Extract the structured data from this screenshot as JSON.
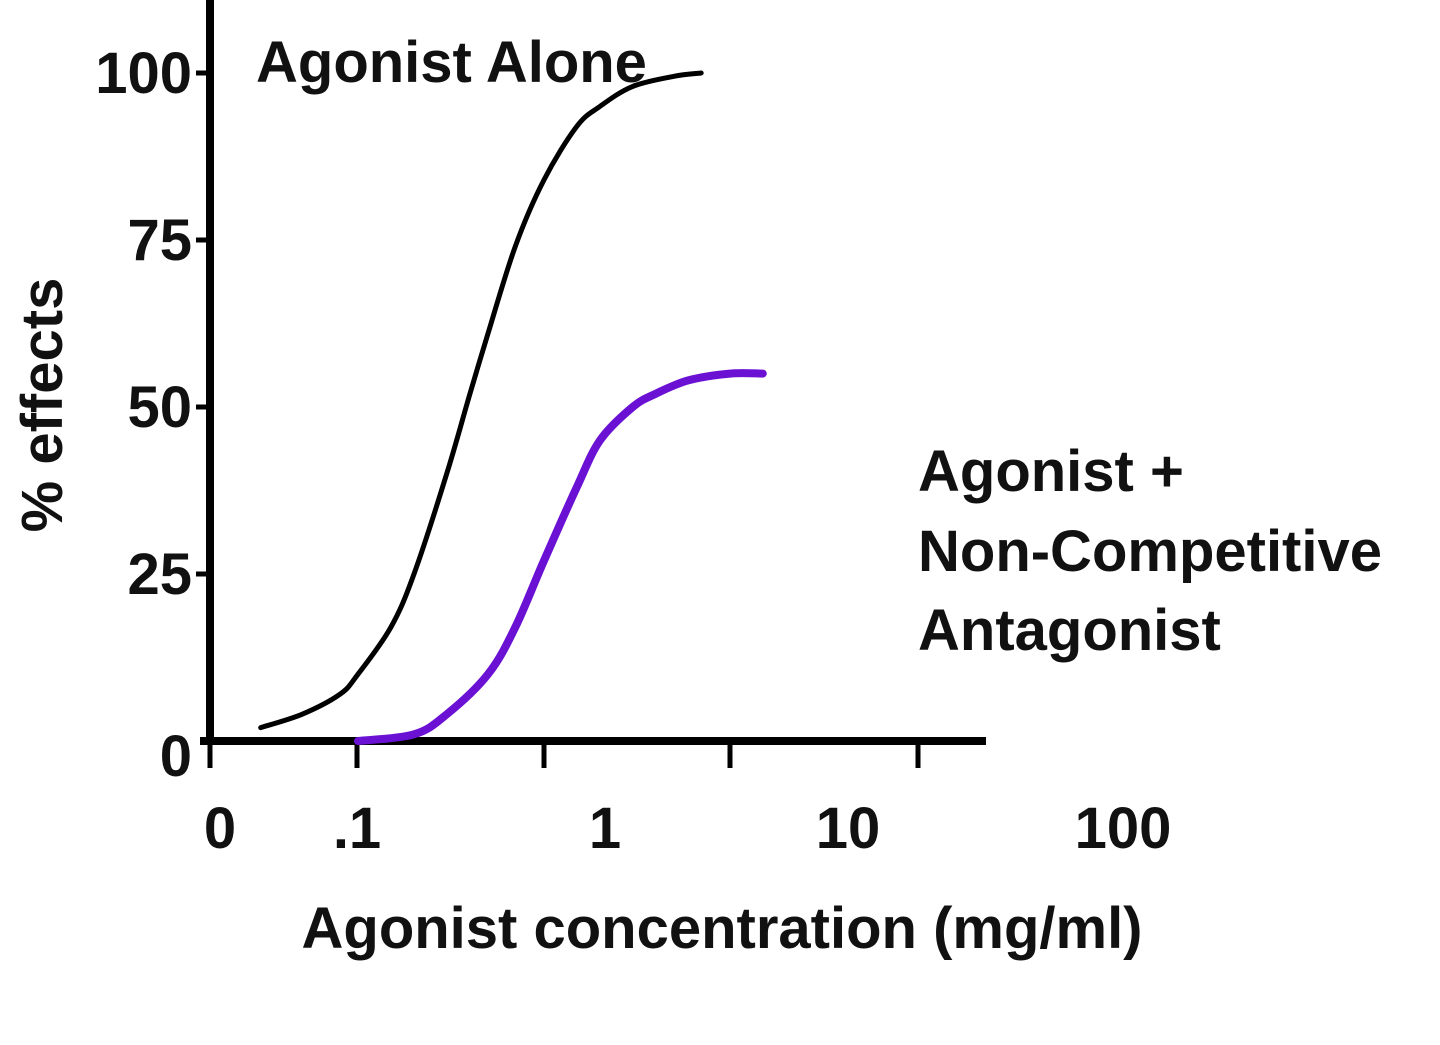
{
  "chart_data": {
    "type": "line",
    "title": "",
    "xlabel": "Agonist concentration (mg/ml)",
    "ylabel": "% effects",
    "x_scale": "log",
    "x_ticks": [
      "0",
      ".1",
      "1",
      "10",
      "100"
    ],
    "y_ticks": [
      "0",
      "25",
      "50",
      "75",
      "100"
    ],
    "ylim": [
      0,
      100
    ],
    "grid": false,
    "colors": {
      "axis": "#000000",
      "agonist_alone": "#000000",
      "with_antagonist": "#6a11d4"
    },
    "annotations": {
      "agonist_alone": "Agonist Alone",
      "with_antagonist": [
        "Agonist +",
        "Non-Competitive",
        "Antagonist"
      ]
    },
    "series": [
      {
        "name": "Agonist Alone",
        "x": [
          0.03,
          0.05,
          0.08,
          0.1,
          0.15,
          0.2,
          0.3,
          0.4,
          0.5,
          0.7,
          1,
          1.5,
          2,
          3,
          5,
          7
        ],
        "y": [
          2,
          4,
          7,
          10,
          17,
          25,
          40,
          52,
          61,
          74,
          84,
          92,
          95,
          98,
          99.5,
          100
        ]
      },
      {
        "name": "Agonist + Non-Competitive Antagonist",
        "x": [
          0.1,
          0.2,
          0.3,
          0.5,
          0.7,
          1,
          1.5,
          2,
          3,
          4,
          6,
          10,
          15
        ],
        "y": [
          0,
          1,
          4,
          10,
          17,
          27,
          38,
          45,
          50,
          52,
          54,
          55,
          55
        ]
      }
    ]
  }
}
